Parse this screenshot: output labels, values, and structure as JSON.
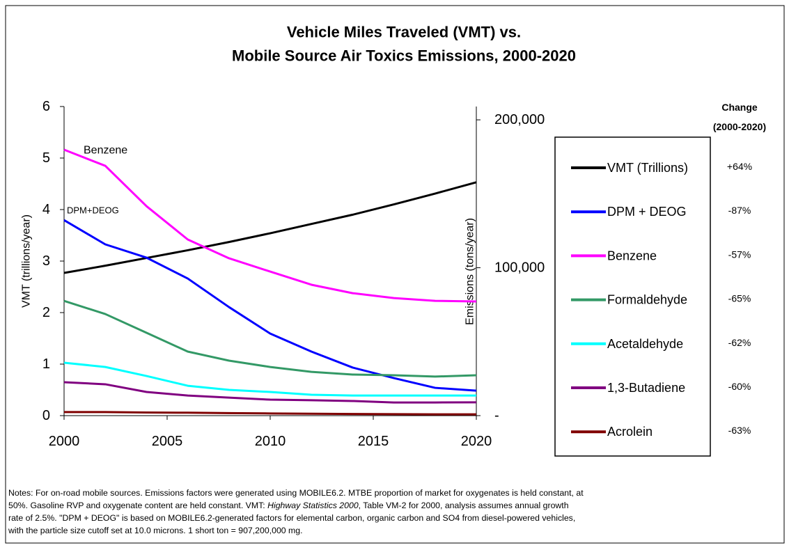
{
  "chart_data": {
    "type": "line",
    "title": [
      "Vehicle Miles Traveled (VMT) vs.",
      "Mobile Source Air Toxics Emissions, 2000-2020"
    ],
    "y_label": "VMT (trillions/year)",
    "y2_label": "Emissions (tons/year)",
    "x": [
      2000,
      2002,
      2004,
      2006,
      2008,
      2010,
      2012,
      2014,
      2016,
      2018,
      2020
    ],
    "xlim": [
      2000,
      2020
    ],
    "xticks": [
      2000,
      2005,
      2010,
      2015,
      2020
    ],
    "ylim": [
      0,
      6
    ],
    "yticks": [
      0,
      1,
      2,
      3,
      4,
      5,
      6
    ],
    "y2lim": [
      0,
      209000
    ],
    "y2ticks": [
      {
        "value": 0,
        "label": "-"
      },
      {
        "value": 100000,
        "label": "100,000"
      },
      {
        "value": 200000,
        "label": "200,000"
      }
    ],
    "grid": false,
    "legend": "right",
    "change_header": [
      "Change",
      "(2000-2020)"
    ],
    "series": [
      {
        "name": "VMT (Trillions)",
        "color": "#000000",
        "change": "+64%",
        "values": [
          2.77,
          2.91,
          3.06,
          3.21,
          3.37,
          3.54,
          3.72,
          3.9,
          4.1,
          4.31,
          4.53
        ]
      },
      {
        "name": "DPM + DEOG",
        "color": "#0000ff",
        "change": "-87%",
        "axis": "y2",
        "values": [
          132200,
          115800,
          106800,
          92700,
          73400,
          55500,
          43300,
          32500,
          25400,
          18800,
          16900
        ]
      },
      {
        "name": "Benzene",
        "color": "#ff00ff",
        "change": "-57%",
        "axis": "y2",
        "values": [
          179800,
          168900,
          141600,
          119100,
          106400,
          97400,
          88500,
          82800,
          79500,
          77600,
          77200
        ]
      },
      {
        "name": "Formaldehyde",
        "color": "#339966",
        "change": "-65%",
        "axis": "y2",
        "values": [
          77600,
          68700,
          56000,
          43300,
          37200,
          32900,
          29600,
          27800,
          27300,
          26400,
          27300
        ]
      },
      {
        "name": "Acetaldehyde",
        "color": "#00ffff",
        "change": "-62%",
        "axis": "y2",
        "values": [
          35800,
          32900,
          26800,
          20200,
          17400,
          16000,
          14100,
          13600,
          13600,
          13600,
          13600
        ]
      },
      {
        "name": "1,3-Butadiene",
        "color": "#800080",
        "change": "-60%",
        "axis": "y2",
        "values": [
          22600,
          21200,
          16000,
          13600,
          12200,
          10800,
          10400,
          9900,
          8900,
          8900,
          9000
        ]
      },
      {
        "name": "Acrolein",
        "color": "#800000",
        "change": "-63%",
        "axis": "y2",
        "values": [
          2400,
          2400,
          2100,
          2000,
          1700,
          1500,
          1300,
          1100,
          1000,
          900,
          900
        ]
      }
    ],
    "annotations": [
      "Benzene",
      "DPM+DEOG"
    ],
    "notes": [
      [
        "Notes: For on-road mobile sources.  Emissions factors were generated using MOBILE6.2.  MTBE proportion of market for oxygenates is held constant, at"
      ],
      [
        "50%.  Gasoline RVP and oxygenate content are held constant.  VMT: ",
        "Highway Statistics 2000",
        ", Table VM-2 for 2000,  analysis assumes annual growth"
      ],
      [
        "rate of 2.5%.  \"DPM + DEOG\" is based on MOBILE6.2-generated factors for elemental carbon, organic carbon and SO4 from diesel-powered vehicles,"
      ],
      [
        "with the particle size cutoff set at 10.0 microns. 1 short ton = 907,200,000 mg."
      ]
    ]
  }
}
